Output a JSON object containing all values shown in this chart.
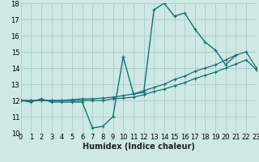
{
  "xlabel": "Humidex (Indice chaleur)",
  "bg_color": "#cde8e5",
  "grid_color": "#b0d0ce",
  "line_color": "#1a7070",
  "xmin": 0,
  "xmax": 23,
  "ymin": 10,
  "ymax": 18,
  "line1_y": [
    12.0,
    11.9,
    12.1,
    11.9,
    11.9,
    11.9,
    11.9,
    10.3,
    10.4,
    11.0,
    14.7,
    12.4,
    12.5,
    17.6,
    18.0,
    17.2,
    17.4,
    16.4,
    15.6,
    15.1,
    14.2,
    14.8,
    null,
    13.9
  ],
  "line2_y": [
    12.0,
    12.0,
    12.0,
    12.0,
    12.0,
    12.05,
    12.1,
    12.1,
    12.15,
    12.2,
    12.3,
    12.4,
    12.6,
    12.8,
    13.0,
    13.3,
    13.5,
    13.8,
    14.0,
    14.2,
    14.5,
    14.8,
    15.0,
    14.0
  ],
  "line3_y": [
    12.0,
    12.0,
    12.0,
    12.0,
    12.0,
    12.0,
    12.0,
    12.0,
    12.0,
    12.1,
    12.15,
    12.2,
    12.35,
    12.55,
    12.7,
    12.9,
    13.1,
    13.35,
    13.55,
    13.75,
    14.0,
    14.25,
    14.5,
    13.9
  ],
  "xlabel_fontsize": 7,
  "tick_fontsize": 6,
  "marker_size": 3.0,
  "lw1": 1.0,
  "lw2": 0.9,
  "lw3": 0.9
}
